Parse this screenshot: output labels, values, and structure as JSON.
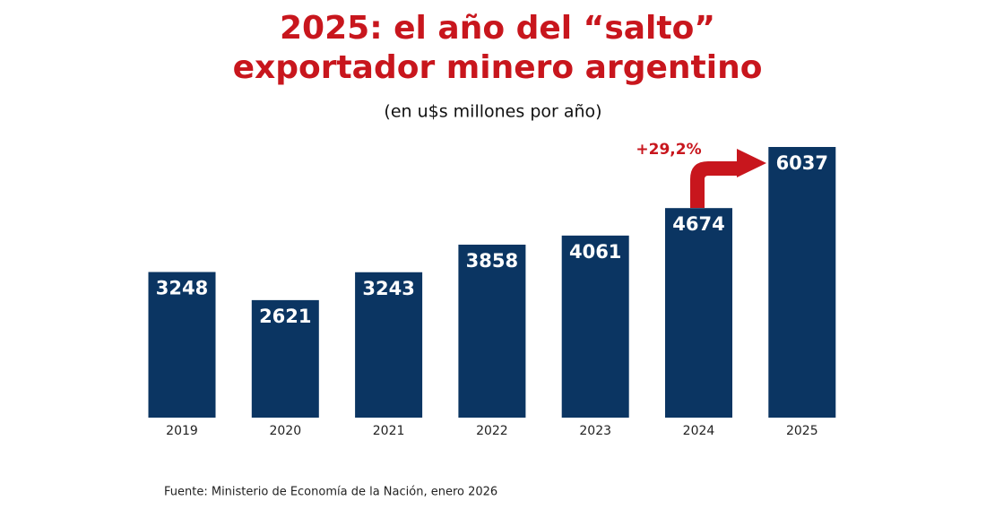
{
  "chart_data": {
    "type": "bar",
    "title": [
      "2025: el año del “salto”",
      "exportador minero argentino"
    ],
    "subtitle": "(en u$s millones por año)",
    "categories": [
      "2019",
      "2020",
      "2021",
      "2022",
      "2023",
      "2024",
      "2025"
    ],
    "values": [
      3248,
      2621,
      3243,
      3858,
      4061,
      4674,
      6037
    ],
    "color": "#0b3562",
    "annotation": "+29,2%",
    "source": "Fuente: Ministerio de Economía de la Nación, enero 2026"
  }
}
